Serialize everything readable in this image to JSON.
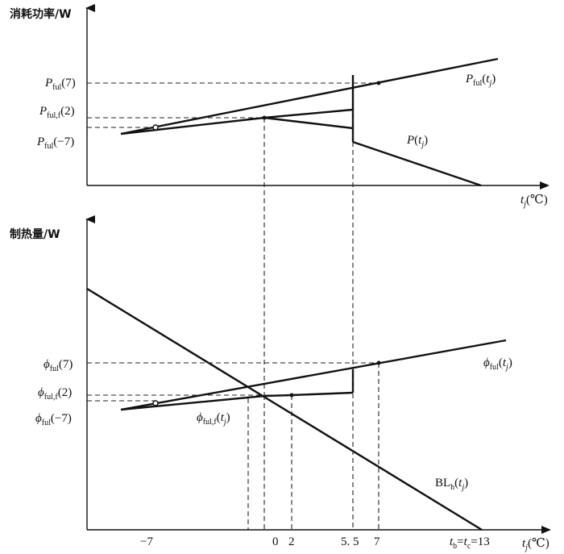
{
  "top": {
    "y_title": "消耗功率/W",
    "x_axis_label": {
      "symbol": "t",
      "sub": "j",
      "unit": "(℃)"
    },
    "labels": {
      "p7": {
        "main": "P",
        "sub": "ful",
        "arg": "(7)"
      },
      "p2": {
        "main": "P",
        "sub": "ful,f",
        "arg": "(2)"
      },
      "pm7": {
        "main": "P",
        "sub": "ful",
        "arg": "(−7)"
      },
      "curve_pful": {
        "main": "P",
        "sub": "ful",
        "arg_open": "(",
        "arg_var": "t",
        "arg_sub": "j",
        "arg_close": ")"
      },
      "curve_p": {
        "main": "P",
        "arg_open": "(",
        "arg_var": "t",
        "arg_sub": "j",
        "arg_close": ")"
      }
    }
  },
  "bottom": {
    "y_title": "制热量/W",
    "x_axis_label": {
      "symbol": "t",
      "sub": "j",
      "unit": "(℃)"
    },
    "labels": {
      "phi7": {
        "main": "ϕ",
        "sub": "ful",
        "arg": "(7)"
      },
      "phi2": {
        "main": "ϕ",
        "sub": "ful,f",
        "arg": "(2)"
      },
      "phim7": {
        "main": "ϕ",
        "sub": "ful",
        "arg": "(−7)"
      },
      "curve_phiful": {
        "main": "ϕ",
        "sub": "ful",
        "arg_open": "(",
        "arg_var": "t",
        "arg_sub": "j",
        "arg_close": ")"
      },
      "curve_phifulf": {
        "main": "ϕ",
        "sub": "ful,f",
        "arg_open": "(",
        "arg_var": "t",
        "arg_sub": "j",
        "arg_close": ")"
      },
      "curve_bl": {
        "main": "BL",
        "sub": "h",
        "arg_open": "(",
        "arg_var": "t",
        "arg_sub": "j",
        "arg_close": ")"
      }
    },
    "ticks": {
      "m7": "−7",
      "t0": "0",
      "t2": "2",
      "t55": "5. 5",
      "t7": "7",
      "tb": {
        "t1": "t",
        "s1": "b",
        "eq1": "=",
        "t2": "t",
        "s2": "c",
        "eq2": "=13"
      }
    }
  }
}
